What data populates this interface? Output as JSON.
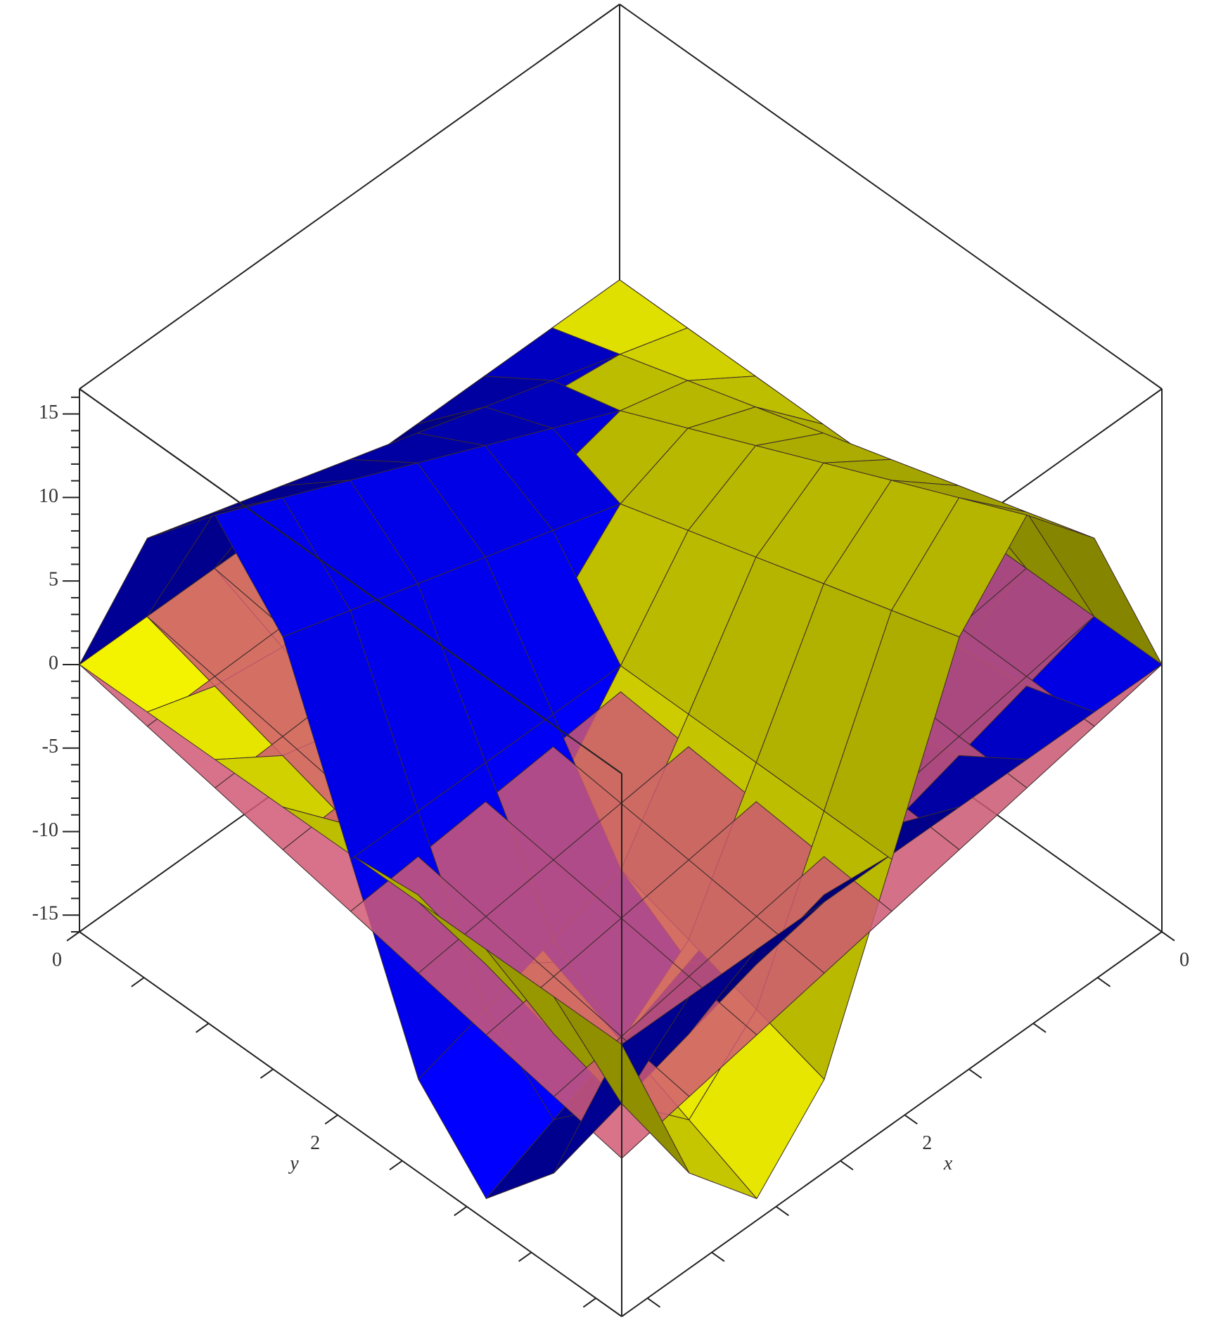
{
  "chart_data": {
    "type": "surface3d",
    "x": [
      0,
      0.525,
      1.05,
      1.575,
      2.1,
      2.625,
      3.15,
      3.675,
      4.2
    ],
    "y": [
      0,
      0.525,
      1.05,
      1.575,
      2.1,
      2.625,
      3.15,
      3.675,
      4.2
    ],
    "xlim": [
      0,
      4.2
    ],
    "ylim": [
      0,
      4.2
    ],
    "zlim": [
      -16,
      16.5
    ],
    "xticks": [
      0,
      2
    ],
    "xminorticks": [
      0.5,
      1,
      1.5,
      2.5,
      3,
      3.5,
      4
    ],
    "yticks": [
      0,
      2
    ],
    "yminorticks": [
      0.5,
      1,
      1.5,
      2.5,
      3,
      3.5,
      4
    ],
    "zticks": [
      -15,
      -10,
      -5,
      0,
      5,
      10,
      15
    ],
    "zminorticks": [
      -16,
      -14,
      -13,
      -12,
      -11,
      -9,
      -8,
      -7,
      -6,
      -4,
      -3,
      -2,
      -1,
      1,
      2,
      3,
      4,
      6,
      7,
      8,
      9,
      11,
      12,
      13,
      14,
      16
    ],
    "xlabel": "x",
    "ylabel": "y",
    "series": [
      {
        "color": "#e0607e",
        "opacity": 0.85,
        "z": [
          [
            0,
            0,
            0,
            0,
            0,
            0,
            0,
            0,
            0
          ],
          [
            0,
            -0.1,
            -0.2,
            -0.31,
            -0.41,
            -0.51,
            -0.61,
            -0.71,
            -0.82
          ],
          [
            0,
            -0.2,
            -0.41,
            -0.61,
            -0.82,
            -1.02,
            -1.22,
            -1.43,
            -1.63
          ],
          [
            0,
            -0.31,
            -0.61,
            -0.92,
            -1.22,
            -1.53,
            -1.84,
            -2.14,
            -2.45
          ],
          [
            0,
            -0.41,
            -0.82,
            -1.22,
            -1.63,
            -2.04,
            -2.45,
            -2.86,
            -3.26
          ],
          [
            0,
            -0.51,
            -1.02,
            -1.53,
            -2.04,
            -2.55,
            -3.06,
            -3.57,
            -4.08
          ],
          [
            0,
            -0.61,
            -1.22,
            -1.84,
            -2.45,
            -3.06,
            -3.67,
            -4.28,
            -4.9
          ],
          [
            0,
            -0.71,
            -1.43,
            -2.14,
            -2.86,
            -3.57,
            -4.28,
            -5.0,
            -5.71
          ],
          [
            0,
            -0.82,
            -1.63,
            -2.45,
            -3.26,
            -4.08,
            -4.9,
            -5.71,
            -6.53
          ]
        ]
      },
      {
        "color": "#0000ff",
        "opacity": 1,
        "z": [
          [
            0,
            0,
            0,
            0,
            0,
            0,
            0,
            0,
            0
          ],
          [
            0,
            1.3,
            1.84,
            1.29,
            -0.02,
            -1.31,
            -1.84,
            -1.29,
            0.04
          ],
          [
            0,
            2.61,
            3.68,
            2.57,
            -0.04,
            -2.61,
            -3.68,
            -2.57,
            0.07
          ],
          [
            0,
            3.91,
            5.51,
            3.86,
            -0.06,
            -3.91,
            -5.51,
            -3.86,
            0.11
          ],
          [
            0,
            5.22,
            7.35,
            5.15,
            -0.07,
            -5.22,
            -7.35,
            -5.15,
            0.15
          ],
          [
            0,
            6.52,
            9.19,
            6.43,
            -0.09,
            -6.52,
            -9.19,
            -6.43,
            0.18
          ],
          [
            0,
            7.83,
            11.03,
            7.72,
            -0.11,
            -7.83,
            -11.03,
            -7.72,
            0.22
          ],
          [
            0,
            9.13,
            12.86,
            9.0,
            -0.13,
            -9.13,
            -12.86,
            -9.0,
            0.26
          ],
          [
            0,
            10.44,
            14.7,
            10.29,
            -0.15,
            -10.44,
            -14.7,
            -10.29,
            0.29
          ]
        ]
      },
      {
        "color": "#ffff00",
        "opacity": 1,
        "z": [
          [
            0,
            0,
            0,
            0,
            0,
            0,
            0,
            0,
            0
          ],
          [
            0,
            1.3,
            2.61,
            3.91,
            5.22,
            6.52,
            7.83,
            9.13,
            10.44
          ],
          [
            0,
            1.84,
            3.68,
            5.51,
            7.35,
            9.19,
            11.03,
            12.86,
            14.7
          ],
          [
            0,
            1.29,
            2.57,
            3.86,
            5.15,
            6.43,
            7.72,
            9.0,
            10.29
          ],
          [
            0,
            -0.02,
            -0.04,
            -0.06,
            -0.07,
            -0.09,
            -0.11,
            -0.13,
            -0.15
          ],
          [
            0,
            -1.31,
            -2.61,
            -3.91,
            -5.22,
            -6.52,
            -7.83,
            -9.13,
            -10.44
          ],
          [
            0,
            -1.84,
            -3.68,
            -5.51,
            -7.35,
            -9.19,
            -11.03,
            -12.86,
            -14.7
          ],
          [
            0,
            -1.29,
            -2.57,
            -3.86,
            -5.15,
            -6.43,
            -7.72,
            -9.0,
            -10.29
          ],
          [
            0,
            0.04,
            0.07,
            0.11,
            0.15,
            0.18,
            0.22,
            0.26,
            0.29
          ]
        ]
      }
    ]
  }
}
